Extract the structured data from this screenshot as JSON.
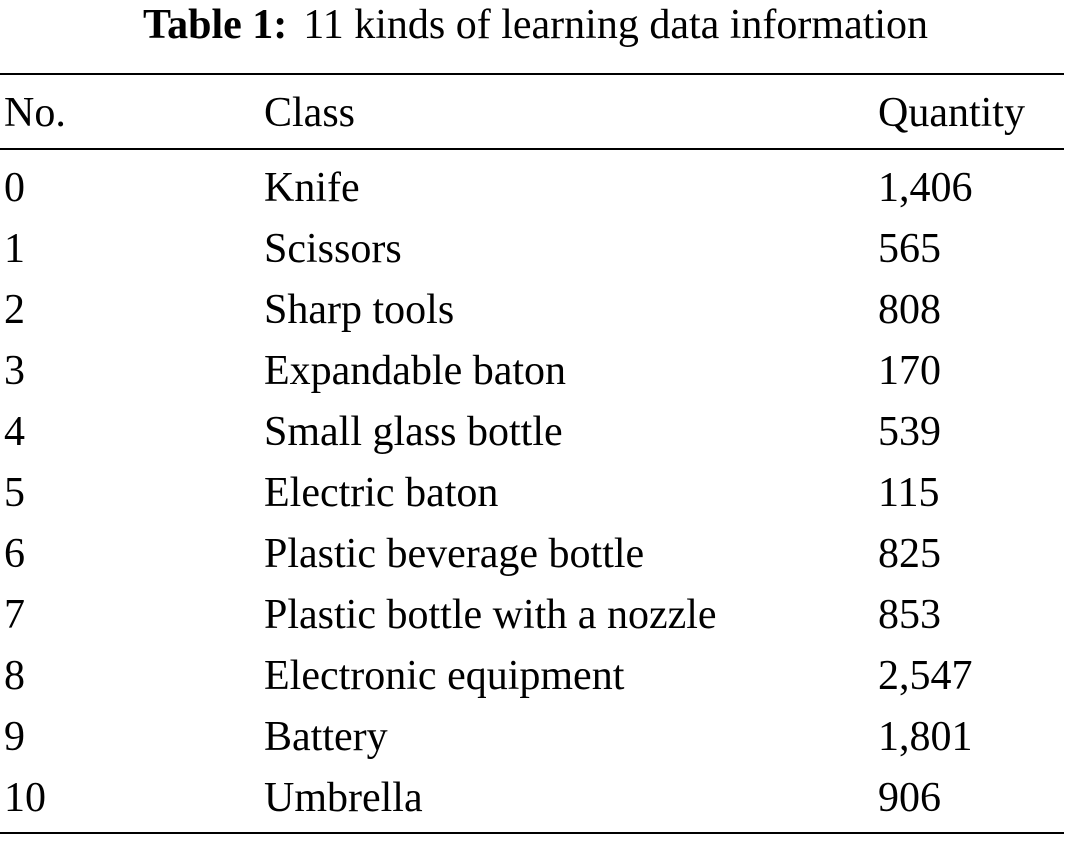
{
  "caption": {
    "label": "Table 1:",
    "text": "11 kinds of learning data information"
  },
  "table": {
    "headers": {
      "no": "No.",
      "class": "Class",
      "quantity": "Quantity"
    },
    "rows": [
      {
        "no": "0",
        "class": "Knife",
        "quantity": "1,406"
      },
      {
        "no": "1",
        "class": "Scissors",
        "quantity": "565"
      },
      {
        "no": "2",
        "class": "Sharp tools",
        "quantity": "808"
      },
      {
        "no": "3",
        "class": "Expandable baton",
        "quantity": "170"
      },
      {
        "no": "4",
        "class": "Small glass bottle",
        "quantity": "539"
      },
      {
        "no": "5",
        "class": "Electric baton",
        "quantity": "115"
      },
      {
        "no": "6",
        "class": "Plastic beverage bottle",
        "quantity": "825"
      },
      {
        "no": "7",
        "class": "Plastic bottle with a nozzle",
        "quantity": "853"
      },
      {
        "no": "8",
        "class": "Electronic equipment",
        "quantity": "2,547"
      },
      {
        "no": "9",
        "class": "Battery",
        "quantity": "1,801"
      },
      {
        "no": "10",
        "class": "Umbrella",
        "quantity": "906"
      }
    ]
  }
}
